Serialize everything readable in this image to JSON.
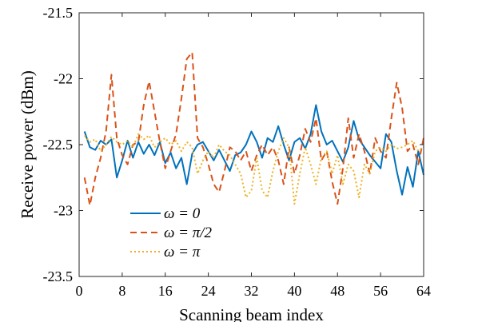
{
  "chart_data": {
    "type": "line",
    "xlabel": "Scanning beam index",
    "ylabel": "Receive power (dBm)",
    "xlim": [
      0,
      64
    ],
    "ylim": [
      -23.5,
      -21.5
    ],
    "xticks": [
      "0",
      "8",
      "16",
      "24",
      "32",
      "40",
      "48",
      "56",
      "64"
    ],
    "yticks": [
      "-21.5",
      "-22",
      "-22.5",
      "-23",
      "-23.5"
    ],
    "grid": false,
    "legend_position": "lower-left",
    "x": [
      1,
      2,
      3,
      4,
      5,
      6,
      7,
      8,
      9,
      10,
      11,
      12,
      13,
      14,
      15,
      16,
      17,
      18,
      19,
      20,
      21,
      22,
      23,
      24,
      25,
      26,
      27,
      28,
      29,
      30,
      31,
      32,
      33,
      34,
      35,
      36,
      37,
      38,
      39,
      40,
      41,
      42,
      43,
      44,
      45,
      46,
      47,
      48,
      49,
      50,
      51,
      52,
      53,
      54,
      55,
      56,
      57,
      58,
      59,
      60,
      61,
      62,
      63,
      64
    ],
    "series": [
      {
        "name": "ω = 0",
        "color": "#0072BD",
        "dash": "solid",
        "values": [
          -22.4,
          -22.52,
          -22.54,
          -22.47,
          -22.5,
          -22.46,
          -22.75,
          -22.62,
          -22.47,
          -22.6,
          -22.48,
          -22.57,
          -22.5,
          -22.58,
          -22.48,
          -22.64,
          -22.56,
          -22.68,
          -22.6,
          -22.8,
          -22.57,
          -22.5,
          -22.48,
          -22.55,
          -22.62,
          -22.54,
          -22.62,
          -22.7,
          -22.58,
          -22.56,
          -22.5,
          -22.4,
          -22.48,
          -22.6,
          -22.45,
          -22.48,
          -22.36,
          -22.5,
          -22.62,
          -22.48,
          -22.45,
          -22.53,
          -22.42,
          -22.2,
          -22.4,
          -22.5,
          -22.47,
          -22.55,
          -22.63,
          -22.52,
          -22.32,
          -22.46,
          -22.52,
          -22.58,
          -22.63,
          -22.68,
          -22.42,
          -22.48,
          -22.7,
          -22.88,
          -22.67,
          -22.82,
          -22.55,
          -22.73
        ]
      },
      {
        "name": "ω = π/2",
        "color": "#D95319",
        "dash": "8 5",
        "values": [
          -22.75,
          -22.96,
          -22.75,
          -22.6,
          -22.4,
          -21.97,
          -22.45,
          -22.58,
          -22.65,
          -22.5,
          -22.48,
          -22.2,
          -22.02,
          -22.25,
          -22.48,
          -22.68,
          -22.55,
          -22.42,
          -22.15,
          -21.85,
          -21.8,
          -22.45,
          -22.52,
          -22.65,
          -22.8,
          -22.86,
          -22.7,
          -22.52,
          -22.55,
          -22.62,
          -22.55,
          -22.7,
          -22.58,
          -22.5,
          -22.58,
          -22.52,
          -22.62,
          -22.8,
          -22.52,
          -22.72,
          -22.58,
          -22.38,
          -22.48,
          -22.3,
          -22.62,
          -22.55,
          -22.78,
          -22.95,
          -22.68,
          -22.3,
          -22.6,
          -22.42,
          -22.55,
          -22.72,
          -22.45,
          -22.55,
          -22.6,
          -22.3,
          -22.03,
          -22.22,
          -22.55,
          -22.5,
          -22.65,
          -22.45
        ]
      },
      {
        "name": "ω = π",
        "color": "#EDB120",
        "dash": "2 3",
        "values": [
          -22.43,
          -22.48,
          -22.46,
          -22.55,
          -22.5,
          -22.44,
          -22.48,
          -22.5,
          -22.47,
          -22.52,
          -22.42,
          -22.46,
          -22.43,
          -22.52,
          -22.48,
          -22.45,
          -22.5,
          -22.47,
          -22.55,
          -22.48,
          -22.52,
          -22.72,
          -22.62,
          -22.55,
          -22.6,
          -22.5,
          -22.55,
          -22.58,
          -22.65,
          -22.72,
          -22.9,
          -22.85,
          -22.6,
          -22.85,
          -22.9,
          -22.7,
          -22.55,
          -22.45,
          -22.52,
          -22.95,
          -22.72,
          -22.52,
          -22.65,
          -22.8,
          -22.6,
          -22.55,
          -22.72,
          -22.58,
          -22.8,
          -22.65,
          -22.7,
          -22.9,
          -22.65,
          -22.72,
          -22.55,
          -22.52,
          -22.55,
          -22.5,
          -22.53,
          -22.52,
          -22.5,
          -22.47,
          -22.55,
          -22.52
        ]
      }
    ]
  }
}
